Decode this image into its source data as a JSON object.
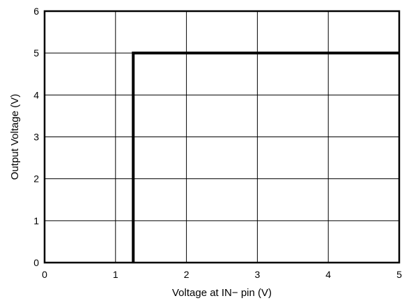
{
  "chart_data": {
    "type": "line",
    "title": "",
    "xlabel": "Voltage at IN− pin (V)",
    "ylabel": "Output Voltage (V)",
    "xlim": [
      0,
      5
    ],
    "ylim": [
      0,
      6
    ],
    "xticks": [
      0,
      1,
      2,
      3,
      4,
      5
    ],
    "yticks": [
      0,
      1,
      2,
      3,
      4,
      5,
      6
    ],
    "x_tick_labels": [
      "0",
      "1",
      "2",
      "3",
      "4",
      "5"
    ],
    "y_tick_labels": [
      "0",
      "1",
      "2",
      "3",
      "4",
      "5",
      "6"
    ],
    "grid": true,
    "series": [
      {
        "x": [
          1.25,
          1.25,
          5
        ],
        "y": [
          0,
          5,
          5
        ],
        "color": "#000000"
      }
    ]
  }
}
